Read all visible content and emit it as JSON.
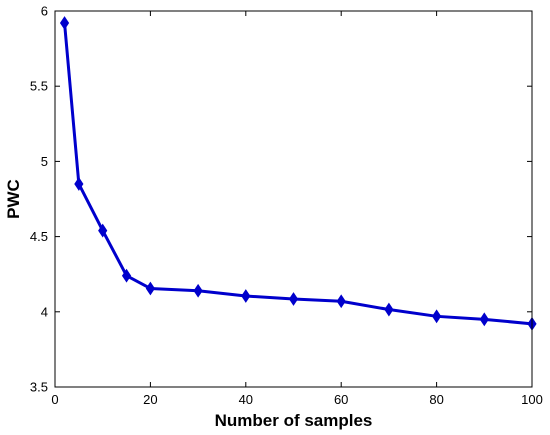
{
  "chart_data": {
    "type": "line",
    "title": "",
    "xlabel": "Number of samples",
    "ylabel": "PWC",
    "xlim": [
      0,
      100
    ],
    "ylim": [
      3.5,
      6
    ],
    "xticks": [
      "0",
      "20",
      "40",
      "60",
      "80",
      "100"
    ],
    "yticks": [
      "3.5",
      "4",
      "4.5",
      "5",
      "5.5",
      "6"
    ],
    "grid": false,
    "legend": "none",
    "series": [
      {
        "color": "#0000cc",
        "marker": "diamond",
        "x": [
          2,
          5,
          10,
          15,
          20,
          30,
          40,
          50,
          60,
          70,
          80,
          90,
          100
        ],
        "y": [
          5.92,
          4.85,
          4.54,
          4.24,
          4.155,
          4.14,
          4.105,
          4.085,
          4.07,
          4.015,
          3.97,
          3.95,
          3.92
        ]
      }
    ]
  }
}
